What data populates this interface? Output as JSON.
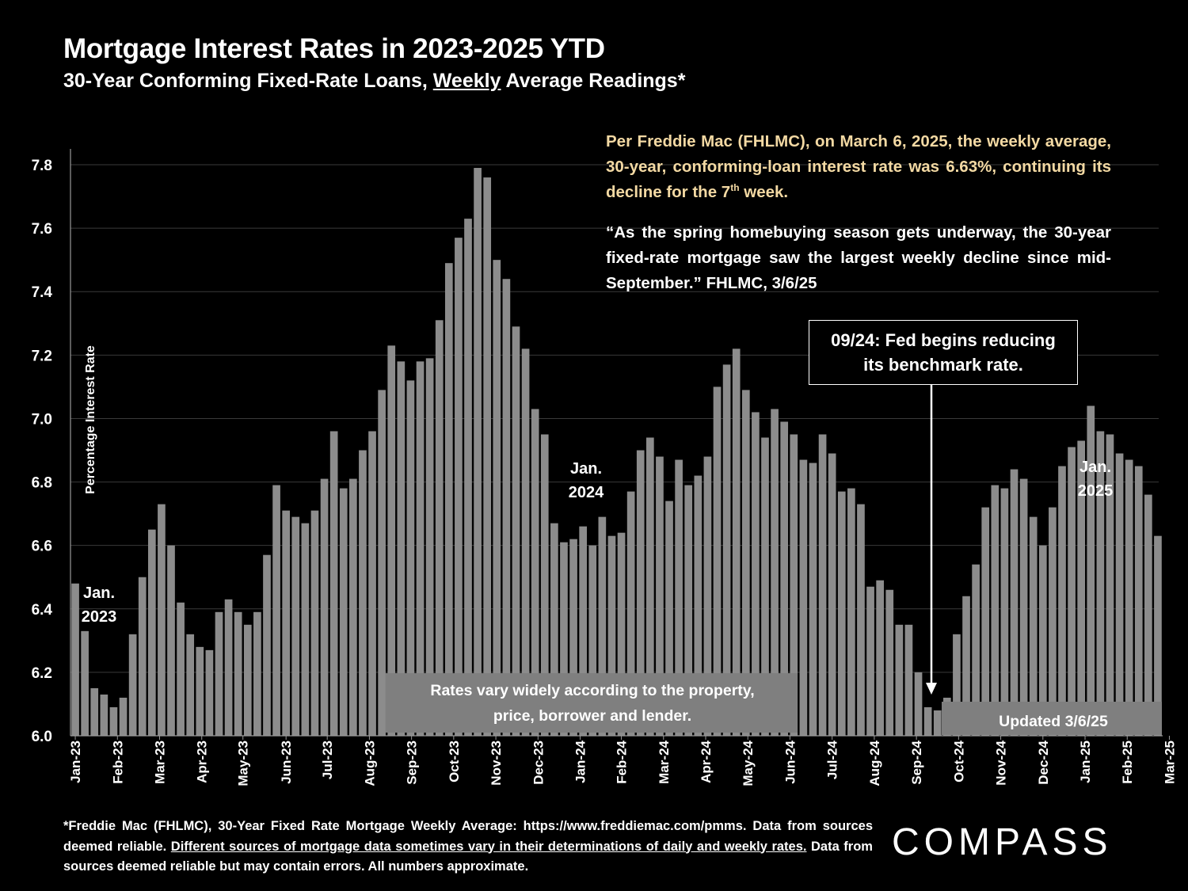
{
  "header": {
    "title": "Mortgage Interest Rates in 2023-2025 YTD",
    "subtitle_pre": "30-Year Conforming Fixed-Rate Loans, ",
    "subtitle_u": "Weekly",
    "subtitle_post": " Average Readings*"
  },
  "notes": {
    "note1_a": "Per Freddie Mac (FHLMC), on March 6, 2025, the weekly average, 30-year, conforming-loan interest rate was 6.63%, continuing its decline for the 7",
    "note1_sup": "th",
    "note1_b": " week.",
    "note2": "“As the spring homebuying season gets underway, the 30-year fixed-rate mortgage saw the largest weekly decline since mid-September.” FHLMC, 3/6/25"
  },
  "fed_box": {
    "line1": "09/24: Fed begins reducing",
    "line2": "its benchmark rate."
  },
  "footer": {
    "text_a": "*Freddie Mac (FHLMC), 30-Year Fixed Rate Mortgage Weekly Average:  https://www.freddiemac.com/pmms. Data from sources deemed reliable. ",
    "text_u": "Different sources of mortgage data sometimes vary in their determinations of daily and weekly rates.",
    "text_b": " Data from sources deemed reliable but may contain errors. All numbers approximate."
  },
  "logo": "COMPASS",
  "colors": {
    "background": "#000000",
    "bar": "#8c8c8c",
    "note_highlight": "#f3d9a3",
    "box_fill": "#7f7f7f",
    "grid": "#3a3a3a"
  },
  "chart_data": {
    "type": "bar",
    "title": "Mortgage Interest Rates in 2023-2025 YTD",
    "ylabel": "Percentage Interest  Rate",
    "xlabel": "",
    "ylim": [
      6.0,
      7.85
    ],
    "yticks": [
      6.0,
      6.2,
      6.4,
      6.6,
      6.8,
      7.0,
      7.2,
      7.4,
      7.6,
      7.8
    ],
    "ytick_labels": [
      "6.0",
      "6.2",
      "6.4",
      "6.6",
      "6.8",
      "7.0",
      "7.2",
      "7.4",
      "7.6",
      "7.8"
    ],
    "grid": true,
    "values": [
      6.48,
      6.33,
      6.15,
      6.13,
      6.09,
      6.12,
      6.32,
      6.5,
      6.65,
      6.73,
      6.6,
      6.42,
      6.32,
      6.28,
      6.27,
      6.39,
      6.43,
      6.39,
      6.35,
      6.39,
      6.57,
      6.79,
      6.71,
      6.69,
      6.67,
      6.71,
      6.81,
      6.96,
      6.78,
      6.81,
      6.9,
      6.96,
      7.09,
      7.23,
      7.18,
      7.12,
      7.18,
      7.19,
      7.31,
      7.49,
      7.57,
      7.63,
      7.79,
      7.76,
      7.5,
      7.44,
      7.29,
      7.22,
      7.03,
      6.95,
      6.67,
      6.61,
      6.62,
      6.66,
      6.6,
      6.69,
      6.63,
      6.64,
      6.77,
      6.9,
      6.94,
      6.88,
      6.74,
      6.87,
      6.79,
      6.82,
      6.88,
      7.1,
      7.17,
      7.22,
      7.09,
      7.02,
      6.94,
      7.03,
      6.99,
      6.95,
      6.87,
      6.86,
      6.95,
      6.89,
      6.77,
      6.78,
      6.73,
      6.47,
      6.49,
      6.46,
      6.35,
      6.35,
      6.2,
      6.09,
      6.08,
      6.12,
      6.32,
      6.44,
      6.54,
      6.72,
      6.79,
      6.78,
      6.84,
      6.81,
      6.69,
      6.6,
      6.72,
      6.85,
      6.91,
      6.93,
      7.04,
      6.96,
      6.95,
      6.89,
      6.87,
      6.85,
      6.76,
      6.63
    ],
    "month_labels": [
      "Jan-23",
      "Feb-23",
      "Mar-23",
      "Apr-23",
      "May-23",
      "Jun-23",
      "Jul-23",
      "Aug-23",
      "Sep-23",
      "Oct-23",
      "Nov-23",
      "Dec-23",
      "Jan-24",
      "Feb-24",
      "Mar-24",
      "Apr-24",
      "May-24",
      "Jun-24",
      "Jul-24",
      "Aug-24",
      "Sep-24",
      "Oct-24",
      "Nov-24",
      "Dec-24",
      "Jan-25",
      "Feb-25",
      "Mar-25"
    ],
    "month_label_bar_index": [
      0,
      4.4,
      8.8,
      13.2,
      17.5,
      22,
      26.3,
      30.7,
      35.1,
      39.5,
      43.9,
      48.3,
      52.7,
      57.0,
      61.4,
      65.8,
      70.2,
      74.6,
      79.0,
      83.4,
      87.8,
      92.2,
      96.6,
      101.0,
      105.4,
      109.8,
      114.2
    ],
    "annotations": [
      {
        "text": [
          "Jan.",
          "2023"
        ]
      },
      {
        "text": [
          "Jan.",
          "2024"
        ]
      },
      {
        "text": [
          "Jan.",
          "2025"
        ]
      }
    ],
    "overlay_boxes": [
      {
        "text": [
          "Rates vary widely according to the property,",
          "price, borrower and lender."
        ]
      },
      {
        "text": [
          "Updated 3/6/25"
        ]
      }
    ],
    "arrow_target": "09/24"
  }
}
